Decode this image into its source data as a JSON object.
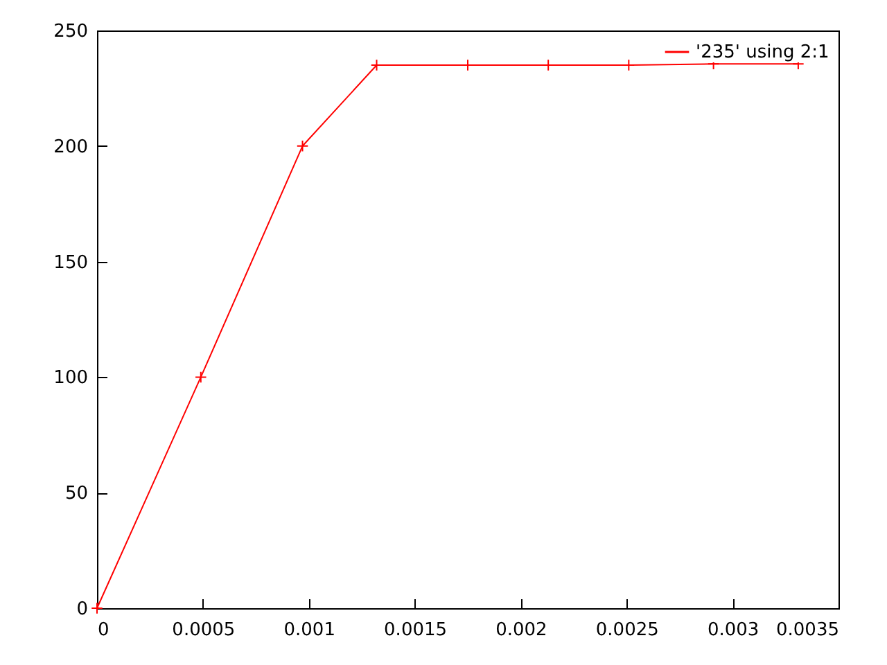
{
  "chart_data": {
    "type": "line",
    "series": [
      {
        "name": "'235' using 2:1",
        "color": "#ff0000",
        "x": [
          0,
          0.00049,
          0.00097,
          0.00132,
          0.00175,
          0.00213,
          0.00251,
          0.00291,
          0.00331
        ],
        "values": [
          0,
          100,
          200,
          235,
          235,
          235,
          235,
          235.5,
          235.5
        ]
      }
    ],
    "xlim": [
      0,
      0.0035
    ],
    "xticks": [
      0,
      0.0005,
      0.001,
      0.0015,
      0.002,
      0.0025,
      0.003,
      0.0035
    ],
    "ylim": [
      0,
      250
    ],
    "yticks": [
      0,
      50,
      100,
      150,
      200,
      250
    ],
    "grid": false,
    "legend": "top right",
    "marker": "cross",
    "line_style": "solid"
  }
}
